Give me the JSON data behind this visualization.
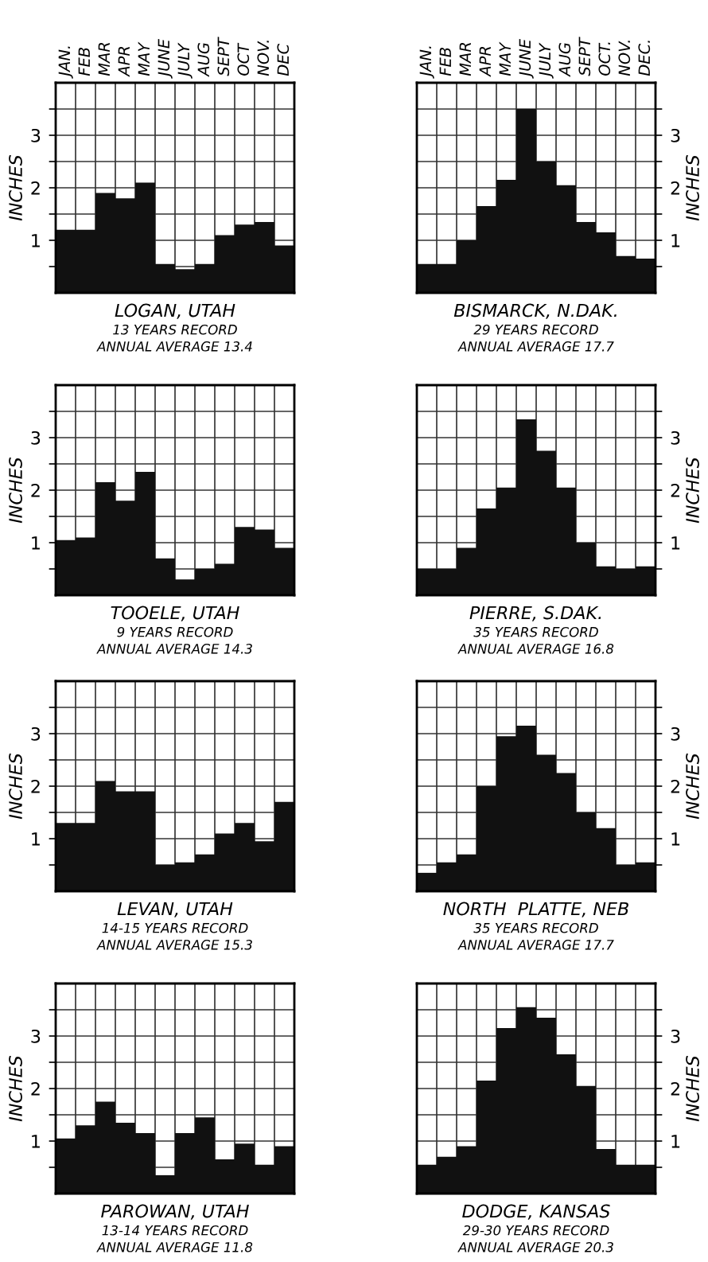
{
  "chart_data": [
    {
      "type": "bar",
      "title": "LOGAN, UTAH",
      "subtitle": "13 YEARS RECORD",
      "annotations": [
        "ANNUAL AVERAGE 13.4"
      ],
      "ylabel": "INCHES",
      "categories": [
        "JAN.",
        "FEB",
        "MAR",
        "APR",
        "MAY",
        "JUNE",
        "JULY",
        "AUG",
        "SEPT",
        "OCT",
        "NOV.",
        "DEC"
      ],
      "color": "#111111",
      "values": [
        1.2,
        1.2,
        1.9,
        1.8,
        2.1,
        0.55,
        0.45,
        0.55,
        1.1,
        1.3,
        1.35,
        0.9
      ],
      "ylim": [
        0,
        4
      ],
      "yticks": [
        {
          "value": 0.5,
          "label": null
        },
        1,
        {
          "value": 1.5,
          "label": null
        },
        2,
        {
          "value": 2.5,
          "label": null
        },
        3,
        {
          "value": 3.5,
          "label": null
        }
      ],
      "grid": true
    },
    {
      "type": "bar",
      "title": "BISMARCK, N.DAK.",
      "subtitle": "29 YEARS RECORD",
      "annotations": [
        "ANNUAL AVERAGE 17.7"
      ],
      "ylabel": "INCHES",
      "categories": [
        "JAN.",
        "FEB",
        "MAR",
        "APR",
        "MAY",
        "JUNE",
        "JULY",
        "AUG",
        "SEPT",
        "OCT.",
        "NOV.",
        "DEC."
      ],
      "color": "#111111",
      "values": [
        0.55,
        0.55,
        1.0,
        1.65,
        2.15,
        3.5,
        2.5,
        2.05,
        1.35,
        1.15,
        0.7,
        0.65
      ],
      "ylim": [
        0,
        4
      ],
      "yticks": [
        {
          "value": 0.5,
          "label": null
        },
        1,
        {
          "value": 1.5,
          "label": null
        },
        2,
        {
          "value": 2.5,
          "label": null
        },
        3,
        {
          "value": 3.5,
          "label": null
        }
      ],
      "grid": true
    },
    {
      "type": "bar",
      "title": "TOOELE, UTAH",
      "subtitle": "9 YEARS RECORD",
      "annotations": [
        "ANNUAL AVERAGE 14.3"
      ],
      "ylabel": "INCHES",
      "categories": [
        null,
        null,
        null,
        null,
        null,
        null,
        null,
        null,
        null,
        null,
        null,
        null
      ],
      "color": "#111111",
      "values": [
        1.05,
        1.1,
        2.15,
        1.8,
        2.35,
        0.7,
        0.3,
        0.5,
        0.6,
        1.3,
        1.25,
        0.9
      ],
      "ylim": [
        0,
        4
      ],
      "yticks": [
        {
          "value": 0.5,
          "label": null
        },
        1,
        {
          "value": 1.5,
          "label": null
        },
        2,
        {
          "value": 2.5,
          "label": null
        },
        3,
        {
          "value": 3.5,
          "label": null
        }
      ],
      "grid": true,
      "tick_labels": "y"
    },
    {
      "type": "bar",
      "title": "PIERRE, S.DAK.",
      "subtitle": "35 YEARS RECORD",
      "annotations": [
        "ANNUAL AVERAGE 16.8"
      ],
      "ylabel": "INCHES",
      "categories": [
        null,
        null,
        null,
        null,
        null,
        null,
        null,
        null,
        null,
        null,
        null,
        null
      ],
      "color": "#111111",
      "values": [
        0.5,
        0.5,
        0.9,
        1.65,
        2.05,
        3.35,
        2.75,
        2.05,
        1.0,
        0.55,
        0.5,
        0.55
      ],
      "ylim": [
        0,
        4
      ],
      "yticks": [
        {
          "value": 0.5,
          "label": null
        },
        1,
        {
          "value": 1.5,
          "label": null
        },
        2,
        {
          "value": 2.5,
          "label": null
        },
        3,
        {
          "value": 3.5,
          "label": null
        }
      ],
      "grid": true,
      "tick_labels": "y"
    },
    {
      "type": "bar",
      "title": "LEVAN, UTAH",
      "subtitle": "14-15 YEARS RECORD",
      "annotations": [
        "ANNUAL AVERAGE 15.3"
      ],
      "ylabel": "INCHES",
      "categories": [
        null,
        null,
        null,
        null,
        null,
        null,
        null,
        null,
        null,
        null,
        null,
        null
      ],
      "color": "#111111",
      "values": [
        1.3,
        1.3,
        2.1,
        1.9,
        1.9,
        0.5,
        0.55,
        0.7,
        1.1,
        1.3,
        0.95,
        1.7
      ],
      "ylim": [
        0,
        4
      ],
      "yticks": [
        {
          "value": 0.5,
          "label": null
        },
        1,
        {
          "value": 1.5,
          "label": null
        },
        2,
        {
          "value": 2.5,
          "label": null
        },
        3,
        {
          "value": 3.5,
          "label": null
        }
      ],
      "grid": true,
      "tick_labels": "y"
    },
    {
      "type": "bar",
      "title": "NORTH  PLATTE, NEB",
      "subtitle": "35 YEARS RECORD",
      "annotations": [
        "ANNUAL AVERAGE 17.7"
      ],
      "ylabel": "INCHES",
      "categories": [
        null,
        null,
        null,
        null,
        null,
        null,
        null,
        null,
        null,
        null,
        null,
        null
      ],
      "color": "#111111",
      "values": [
        0.35,
        0.55,
        0.7,
        2.0,
        2.95,
        3.15,
        2.6,
        2.25,
        1.5,
        1.2,
        0.5,
        0.55
      ],
      "ylim": [
        0,
        4
      ],
      "yticks": [
        {
          "value": 0.5,
          "label": null
        },
        1,
        {
          "value": 1.5,
          "label": null
        },
        2,
        {
          "value": 2.5,
          "label": null
        },
        3,
        {
          "value": 3.5,
          "label": null
        }
      ],
      "grid": true,
      "tick_labels": "y"
    },
    {
      "type": "bar",
      "title": "PAROWAN, UTAH",
      "subtitle": "13-14 YEARS RECORD",
      "annotations": [
        "ANNUAL AVERAGE 11.8"
      ],
      "ylabel": "INCHES",
      "categories": [
        null,
        null,
        null,
        null,
        null,
        null,
        null,
        null,
        null,
        null,
        null,
        null
      ],
      "color": "#111111",
      "values": [
        1.05,
        1.3,
        1.75,
        1.35,
        1.15,
        0.35,
        1.15,
        1.45,
        0.65,
        0.95,
        0.55,
        0.9
      ],
      "ylim": [
        0,
        4
      ],
      "yticks": [
        {
          "value": 0.5,
          "label": null
        },
        1,
        {
          "value": 1.5,
          "label": null
        },
        2,
        {
          "value": 2.5,
          "label": null
        },
        3,
        {
          "value": 3.5,
          "label": null
        }
      ],
      "grid": true,
      "tick_labels": "y"
    },
    {
      "type": "bar",
      "title": "DODGE, KANSAS",
      "subtitle": "29-30 YEARS RECORD",
      "annotations": [
        "ANNUAL AVERAGE 20.3"
      ],
      "ylabel": "INCHES",
      "categories": [
        null,
        null,
        null,
        null,
        null,
        null,
        null,
        null,
        null,
        null,
        null,
        null
      ],
      "color": "#111111",
      "values": [
        0.55,
        0.7,
        0.9,
        2.15,
        3.15,
        3.55,
        3.35,
        2.65,
        2.05,
        0.85,
        0.55,
        0.55
      ],
      "ylim": [
        0,
        4
      ],
      "yticks": [
        {
          "value": 0.5,
          "label": null
        },
        1,
        {
          "value": 1.5,
          "label": null
        },
        2,
        {
          "value": 2.5,
          "label": null
        },
        3,
        {
          "value": 3.5,
          "label": null
        }
      ],
      "grid": true,
      "tick_labels": "y"
    }
  ]
}
